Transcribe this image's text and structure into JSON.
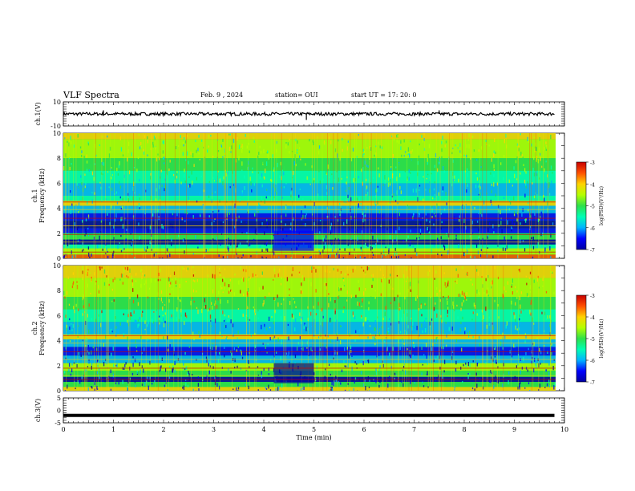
{
  "header": {
    "title": "VLF Spectra",
    "date": "Feb. 9 , 2024",
    "station": "station= OUI",
    "start": "start UT = 17: 20: 0"
  },
  "colors": {
    "trace": "#000000",
    "spectrogram_bg": "#22c24a",
    "colormap": [
      "#0000a0",
      "#0000ff",
      "#00b4ff",
      "#00ffb4",
      "#2ee04a",
      "#b4ff00",
      "#ffd200",
      "#ff5000",
      "#c80000",
      "#ffffff"
    ]
  },
  "chart_data": [
    {
      "type": "line",
      "name": "ch1-waveform",
      "ylabel": "ch.1(V)",
      "ylim": [
        -10,
        10
      ],
      "yticks": [
        "10",
        "-10"
      ],
      "xlim": [
        0,
        10
      ],
      "x": [
        0,
        1,
        2,
        3,
        4,
        5,
        6,
        7,
        8,
        9,
        9.8
      ],
      "y": [
        0,
        0,
        0,
        0,
        0,
        0,
        0,
        0,
        0,
        0,
        0
      ],
      "spikes": [
        [
          0.8,
          3
        ],
        [
          4.85,
          -5
        ],
        [
          7.5,
          3
        ]
      ]
    },
    {
      "type": "heatmap",
      "name": "ch1-spectrogram",
      "ylabel": "ch.1\nFrequency (kHz)",
      "ylim": [
        0,
        10
      ],
      "yticks": [
        "0",
        "2",
        "4",
        "6",
        "8",
        "10"
      ],
      "xlim": [
        0,
        10
      ],
      "colorbar": {
        "label": "log(PSD)(V²/Hz)",
        "ticks": [
          "-3",
          "-4",
          "-5",
          "-6",
          "-7"
        ],
        "range": [
          -7,
          -3
        ]
      }
    },
    {
      "type": "heatmap",
      "name": "ch2-spectrogram",
      "ylabel": "ch.2\nFrequency (kHz)",
      "ylim": [
        0,
        10
      ],
      "yticks": [
        "0",
        "2",
        "4",
        "6",
        "8",
        "10"
      ],
      "xlim": [
        0,
        10
      ],
      "colorbar": {
        "label": "log(PSD)(V²/Hz)",
        "ticks": [
          "-3",
          "-4",
          "-5",
          "-6",
          "-7"
        ],
        "range": [
          -7,
          -3
        ]
      }
    },
    {
      "type": "line",
      "name": "ch3-waveform",
      "ylabel": "ch.3(V)",
      "ylim": [
        -5,
        5
      ],
      "yticks": [
        "5",
        "0",
        "-5"
      ],
      "xlim": [
        0,
        10
      ],
      "xlabel": "Time (min)",
      "xticks": [
        "0",
        "1",
        "2",
        "3",
        "4",
        "5",
        "6",
        "7",
        "8",
        "9",
        "10"
      ],
      "x": [
        0,
        9.8
      ],
      "y": [
        -2,
        -2
      ]
    }
  ]
}
